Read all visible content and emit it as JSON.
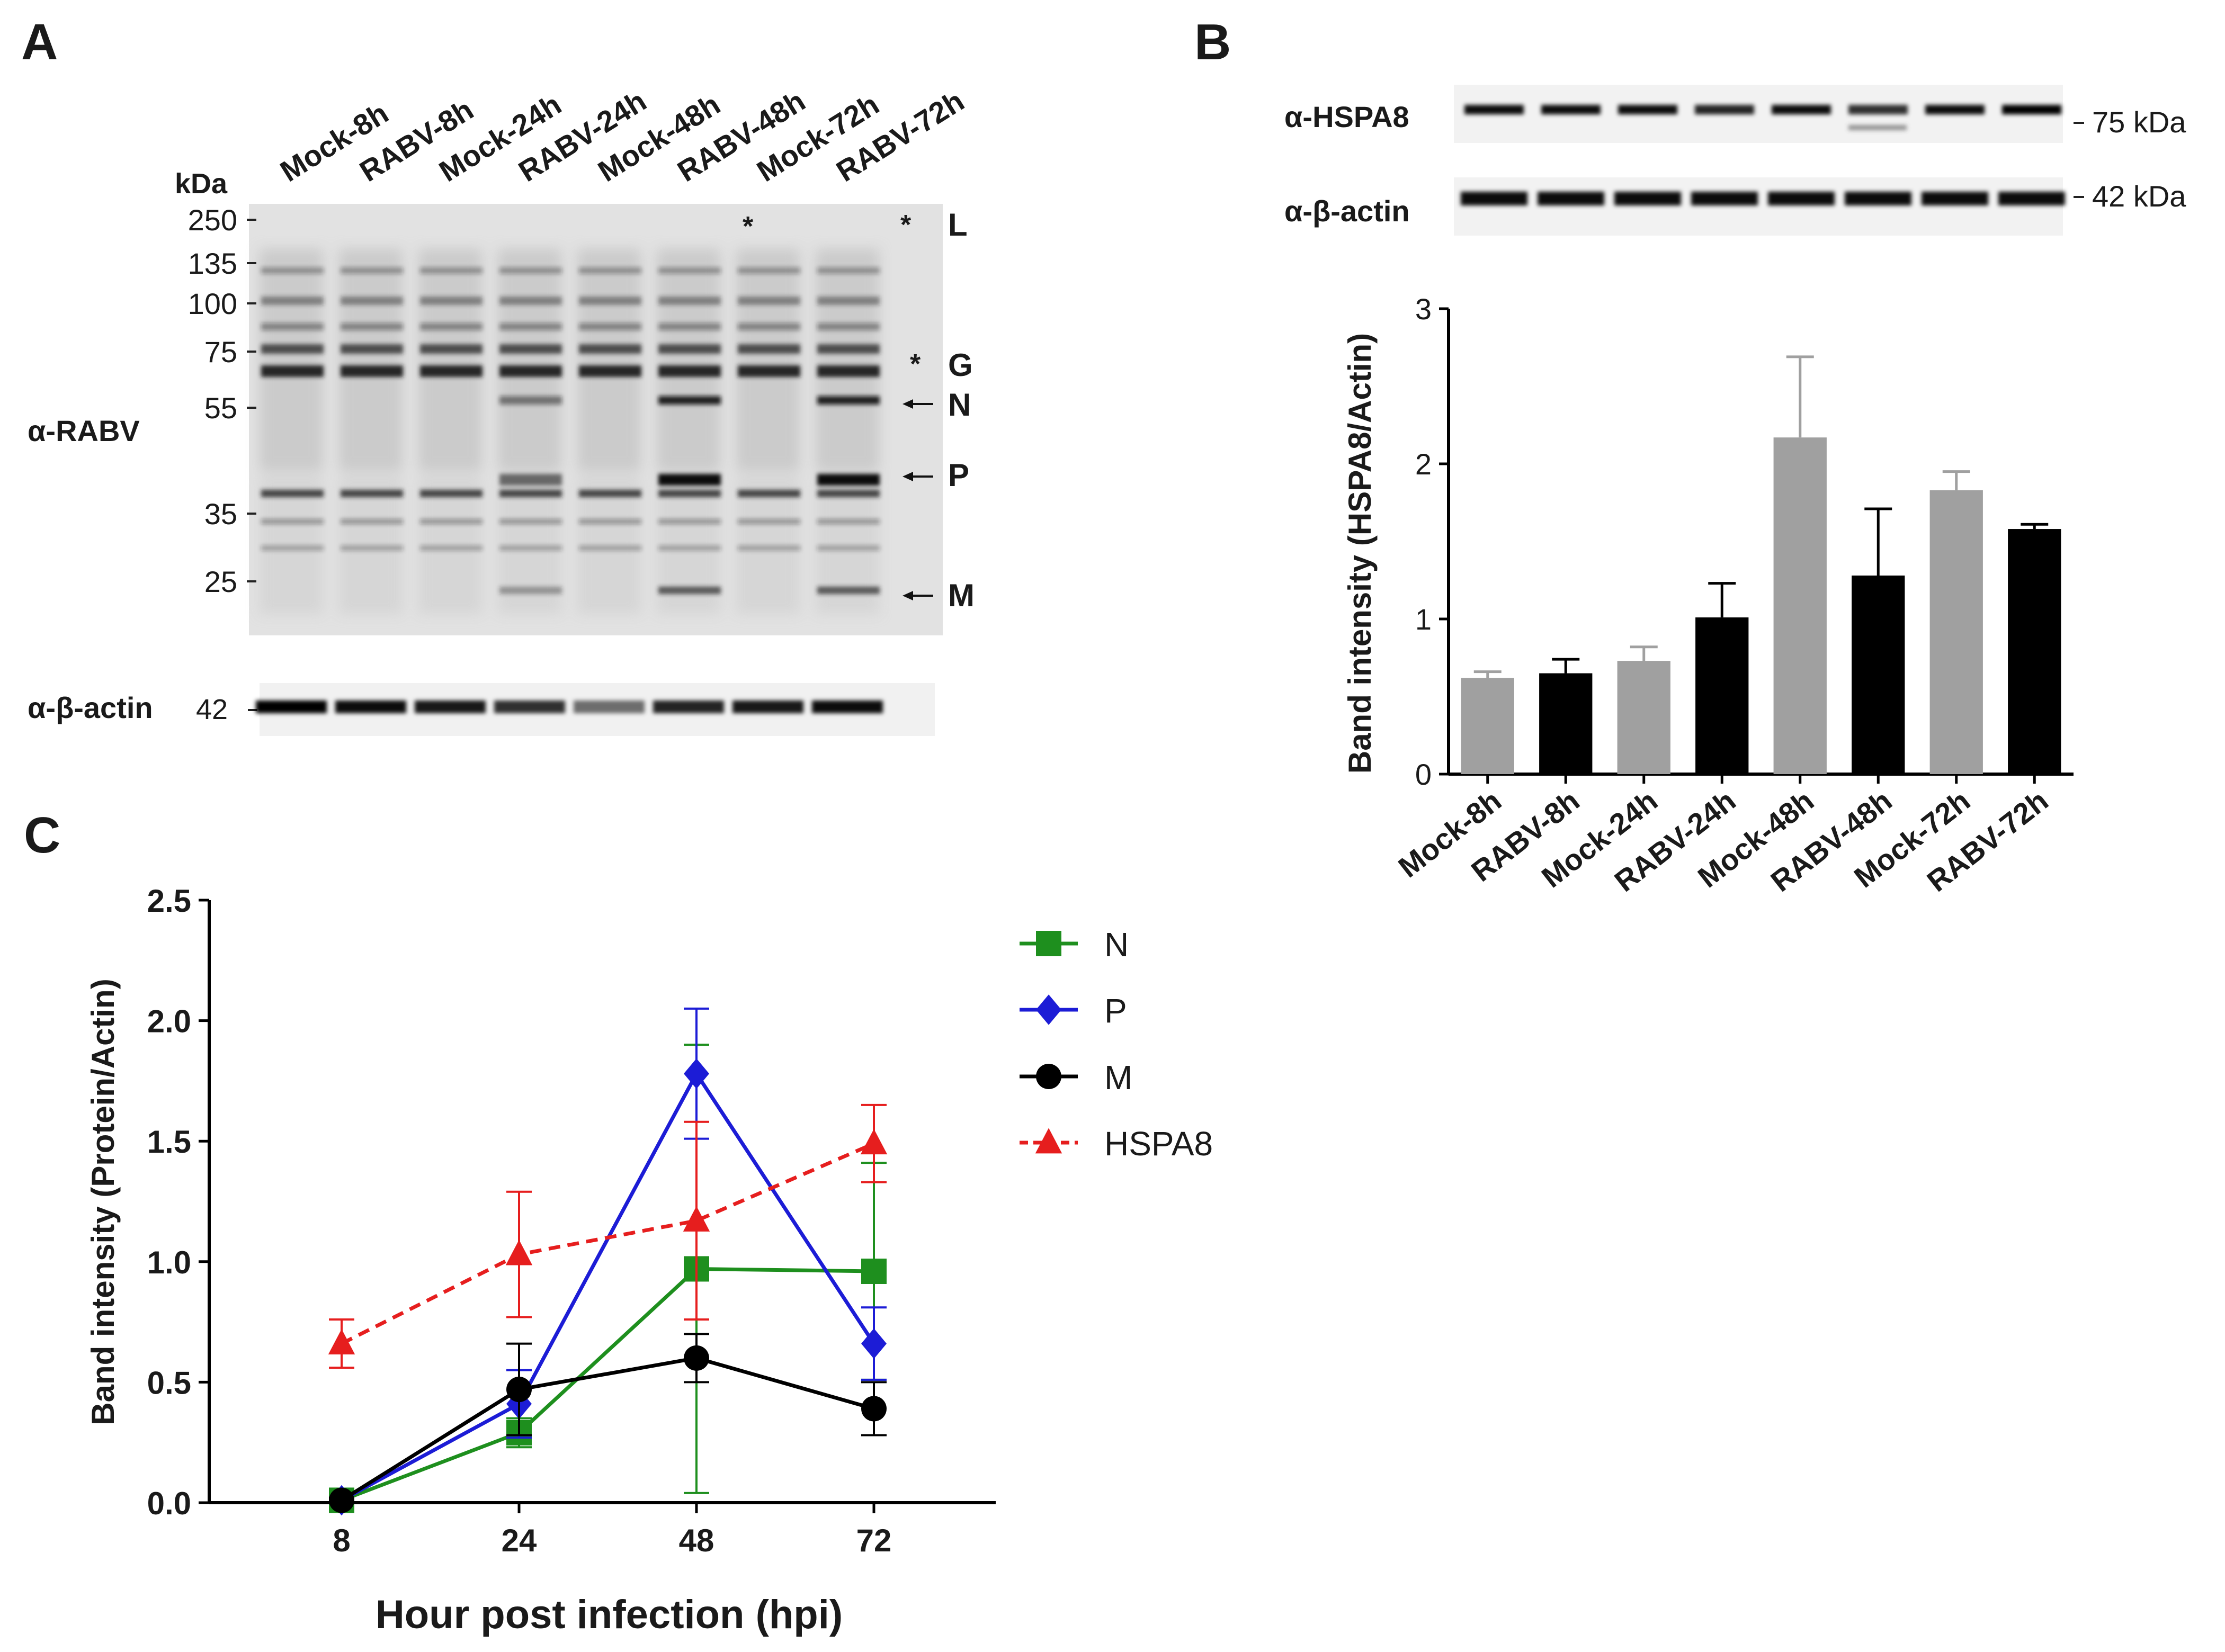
{
  "panel_letters": {
    "a": "A",
    "b": "B",
    "c": "C"
  },
  "lanes": [
    "Mock-8h",
    "RABV-8h",
    "Mock-24h",
    "RABV-24h",
    "Mock-48h",
    "RABV-48h",
    "Mock-72h",
    "RABV-72h"
  ],
  "blot_a": {
    "kda_header": "kDa",
    "markers": [
      "250",
      "135",
      "100",
      "75",
      "55",
      "35",
      "25"
    ],
    "antibody_label": "α-RABV",
    "actin_label": "α-β-actin",
    "actin_marker": "42",
    "bands": [
      "L",
      "G",
      "N",
      "P",
      "M"
    ],
    "star": "*"
  },
  "blot_b": {
    "hspa8_label": "α-HSPA8",
    "actin_label": "α-β-actin",
    "hspa8_size": "75 kDa",
    "actin_size": "42 kDa"
  },
  "chart_data": [
    {
      "type": "bar",
      "panel": "B",
      "categories": [
        "Mock-8h",
        "RABV-8h",
        "Mock-24h",
        "RABV-24h",
        "Mock-48h",
        "RABV-48h",
        "Mock-72h",
        "RABV-72h"
      ],
      "values": [
        0.62,
        0.65,
        0.73,
        1.01,
        2.17,
        1.28,
        1.83,
        1.58
      ],
      "errors": [
        0.04,
        0.09,
        0.09,
        0.22,
        0.52,
        0.43,
        0.12,
        0.03
      ],
      "colors": [
        "#a0a0a0",
        "#000000",
        "#a0a0a0",
        "#000000",
        "#a0a0a0",
        "#000000",
        "#a0a0a0",
        "#000000"
      ],
      "ylabel": "Band intensity (HSPA8/Actin)",
      "xlabel": "",
      "ylim": [
        0,
        3
      ],
      "yticks": [
        "0",
        "1",
        "2",
        "3"
      ]
    },
    {
      "type": "line",
      "panel": "C",
      "x": [
        8,
        24,
        48,
        72
      ],
      "xticks": [
        "8",
        "24",
        "48",
        "72"
      ],
      "yticks": [
        "0.0",
        "0.5",
        "1.0",
        "1.5",
        "2.0",
        "2.5"
      ],
      "ylim": [
        0,
        2.5
      ],
      "xlabel": "Hour post infection (hpi)",
      "ylabel": "Band intensity (Protein/Actin)",
      "series": [
        {
          "name": "N",
          "values": [
            0.01,
            0.29,
            0.97,
            0.96
          ],
          "errors": [
            0.01,
            0.06,
            0.93,
            0.45
          ],
          "color": "#1e8f1e",
          "marker": "square",
          "dashed": false
        },
        {
          "name": "P",
          "values": [
            0.01,
            0.41,
            1.78,
            0.66
          ],
          "errors": [
            0.01,
            0.14,
            0.27,
            0.15
          ],
          "color": "#1c1cd6",
          "marker": "diamond",
          "dashed": false
        },
        {
          "name": "M",
          "values": [
            0.01,
            0.47,
            0.6,
            0.39
          ],
          "errors": [
            0.01,
            0.19,
            0.1,
            0.11
          ],
          "color": "#000000",
          "marker": "circle",
          "dashed": false
        },
        {
          "name": "HSPA8",
          "values": [
            0.66,
            1.03,
            1.17,
            1.49
          ],
          "errors": [
            0.1,
            0.26,
            0.41,
            0.16
          ],
          "color": "#e61e1e",
          "marker": "triangle",
          "dashed": true
        }
      ]
    }
  ]
}
